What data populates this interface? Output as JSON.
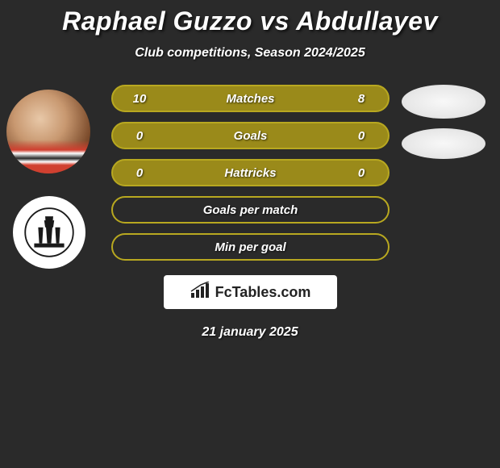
{
  "title": "Raphael Guzzo vs Abdullayev",
  "subtitle": "Club competitions, Season 2024/2025",
  "date": "21 january 2025",
  "branding_text": "FcTables.com",
  "colors": {
    "background": "#2a2a2a",
    "row_filled": "#9a8a1a",
    "row_filled_border": "#b8a820",
    "row_outline_border": "#b8a820",
    "text": "#ffffff",
    "avatar_right_bg": "#f0f0f0"
  },
  "rows": [
    {
      "label": "Matches",
      "left": "10",
      "right": "8",
      "style": "filled"
    },
    {
      "label": "Goals",
      "left": "0",
      "right": "0",
      "style": "filled"
    },
    {
      "label": "Hattricks",
      "left": "0",
      "right": "0",
      "style": "filled"
    },
    {
      "label": "Goals per match",
      "left": "",
      "right": "",
      "style": "outline"
    },
    {
      "label": "Min per goal",
      "left": "",
      "right": "",
      "style": "outline"
    }
  ]
}
